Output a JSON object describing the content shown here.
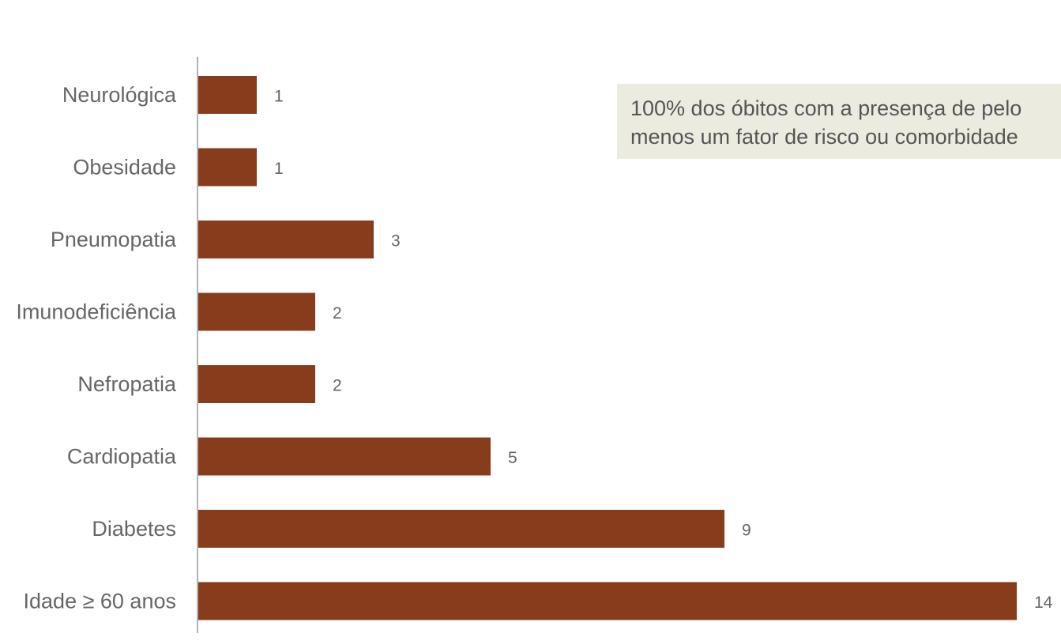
{
  "chart_data": {
    "type": "bar",
    "orientation": "horizontal",
    "categories": [
      "Neurológica",
      "Obesidade",
      "Pneumopatia",
      "Imunodeficiência",
      "Nefropatia",
      "Cardiopatia",
      "Diabetes",
      "Idade ≥ 60 anos"
    ],
    "values": [
      1,
      1,
      3,
      2,
      2,
      5,
      9,
      14
    ],
    "xlim": [
      0,
      14
    ],
    "grid": false,
    "bar_color": "#873c1c",
    "annotation": {
      "lines": [
        "100% dos óbitos com a presença de pelo",
        "menos um fator de risco ou comorbidade"
      ],
      "background": "#ecebe0"
    }
  }
}
